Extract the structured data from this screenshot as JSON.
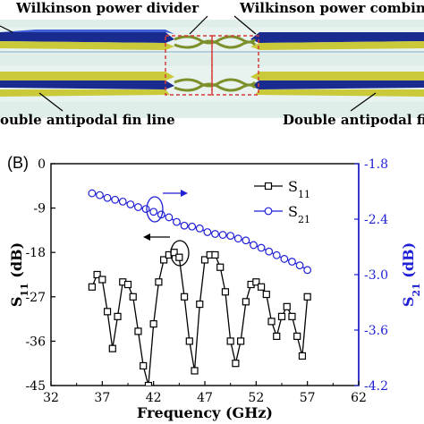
{
  "panel_a": {
    "label_divider": "Wilkinson power divider",
    "label_combiner": "Wilkinson power combiner",
    "label_fin_left": "ouble antipodal fin line",
    "label_fin_right": "Double antipodal fin"
  },
  "panel_b_label": "(B)",
  "colors": {
    "s11": "#000000",
    "s21": "#1f1fd6",
    "right_axis": "#1f1fd6"
  },
  "chart_data": {
    "type": "line",
    "xlabel": "Frequency (GHz)",
    "ylabel_left_main": "S",
    "ylabel_left_sub": "11",
    "ylabel_left_unit": " (dB)",
    "ylabel_right_main": "S",
    "ylabel_right_sub": "21",
    "ylabel_right_unit": " (dB)",
    "xlim": [
      32,
      62
    ],
    "ylim_left": [
      -45,
      0
    ],
    "ylim_right": [
      -4.2,
      -1.8
    ],
    "x_ticks": [
      "32",
      "37",
      "42",
      "47",
      "52",
      "57",
      "62"
    ],
    "y_left_ticks": [
      "0",
      "-9",
      "-18",
      "-27",
      "-36",
      "-45"
    ],
    "y_right_ticks": [
      "-1.8",
      "-2.4",
      "-3.0",
      "-3.6",
      "-4.2"
    ],
    "legend": [
      "S11",
      "S21"
    ],
    "legend_position": "top-right",
    "series": [
      {
        "name": "S11",
        "axis": "left",
        "marker": "square",
        "x": [
          36,
          36.5,
          37,
          37.5,
          38,
          38.5,
          39,
          39.5,
          40,
          40.5,
          41,
          41.5,
          42,
          42.5,
          43,
          43.5,
          44,
          44.5,
          45,
          45.5,
          46,
          46.5,
          47,
          47.5,
          48,
          48.5,
          49,
          49.5,
          50,
          50.5,
          51,
          51.5,
          52,
          52.5,
          53,
          53.5,
          54,
          54.5,
          55,
          55.5,
          56,
          56.5,
          57
        ],
        "y": [
          -25,
          -22.5,
          -23.5,
          -30,
          -37.5,
          -31,
          -24,
          -24.5,
          -27,
          -34,
          -41,
          -45,
          -32.5,
          -24,
          -19.5,
          -18.5,
          -18,
          -19,
          -27,
          -36,
          -42,
          -28.5,
          -19.5,
          -18.5,
          -18.5,
          -21,
          -26,
          -36,
          -40.5,
          -36,
          -28,
          -24.5,
          -24,
          -25,
          -26.5,
          -32,
          -35,
          -31,
          -29,
          -31,
          -35,
          -39,
          -27
        ]
      },
      {
        "name": "S21",
        "axis": "right",
        "marker": "circle",
        "x": [
          36,
          36.75,
          37.5,
          38.25,
          39,
          39.75,
          40.5,
          41.25,
          42,
          42.75,
          43.5,
          44.25,
          45,
          45.75,
          46.5,
          47.25,
          48,
          48.75,
          49.5,
          50.25,
          51,
          51.75,
          52.5,
          53.25,
          54,
          54.75,
          55.5,
          56.25,
          57
        ],
        "y": [
          -2.12,
          -2.14,
          -2.17,
          -2.19,
          -2.21,
          -2.24,
          -2.27,
          -2.29,
          -2.32,
          -2.35,
          -2.38,
          -2.43,
          -2.47,
          -2.48,
          -2.5,
          -2.54,
          -2.56,
          -2.57,
          -2.58,
          -2.61,
          -2.63,
          -2.68,
          -2.71,
          -2.75,
          -2.79,
          -2.83,
          -2.86,
          -2.9,
          -2.95
        ]
      }
    ]
  }
}
